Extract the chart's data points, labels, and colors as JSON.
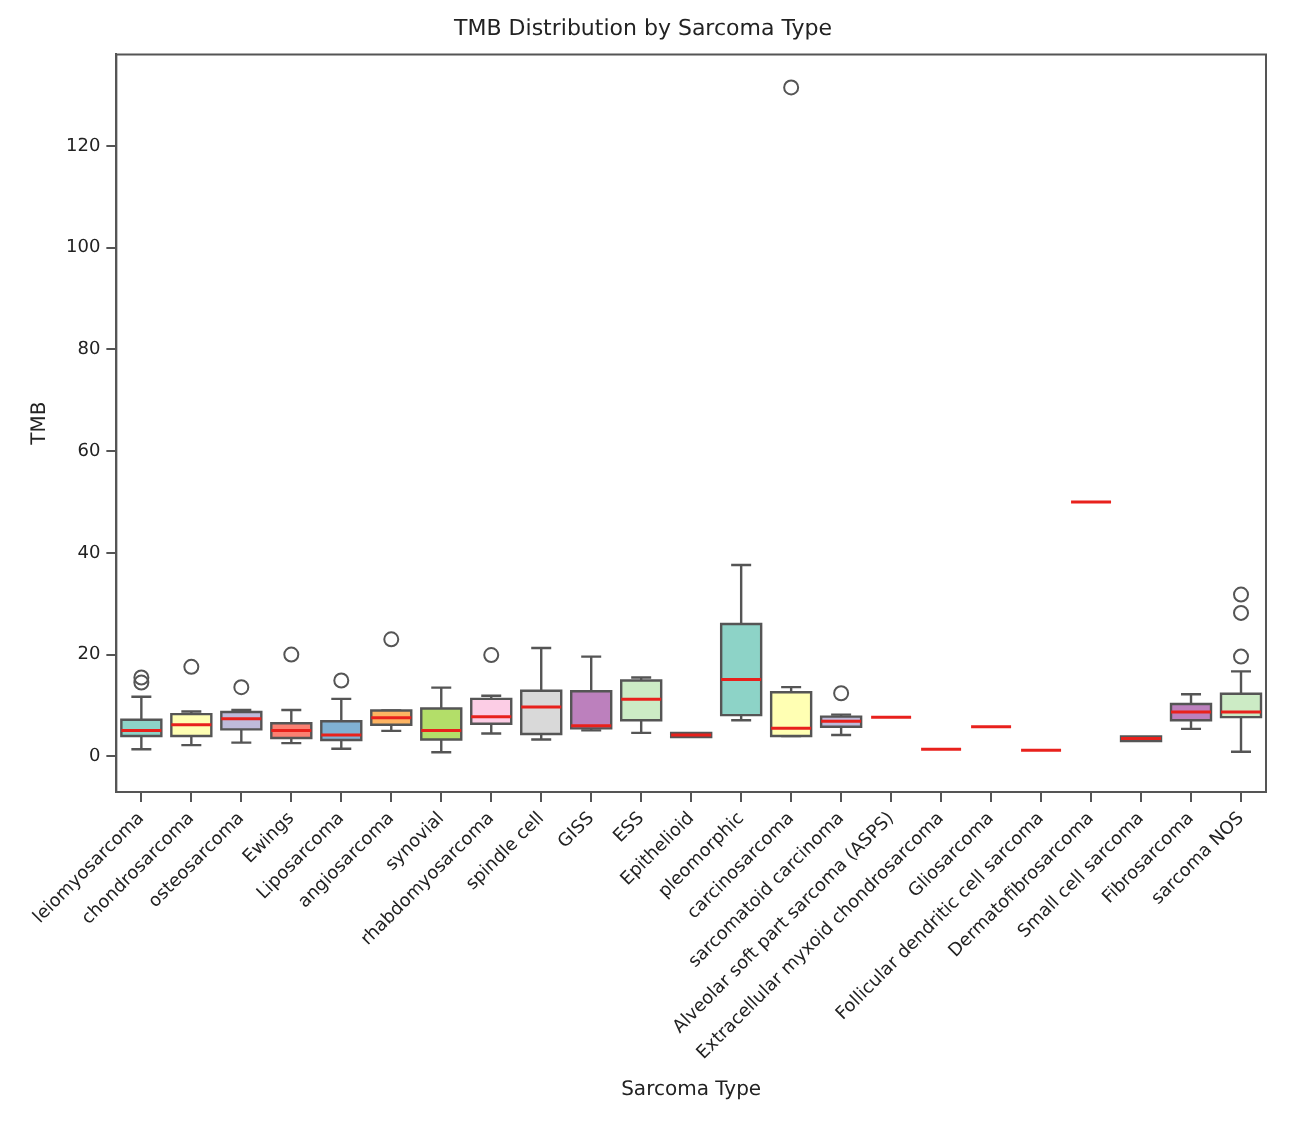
{
  "chart_data": {
    "type": "box",
    "title": "TMB Distribution by Sarcoma Type",
    "xlabel": "Sarcoma Type",
    "ylabel": "TMB",
    "categories": [
      "leiomyosarcoma",
      "chondrosarcoma",
      "osteosarcoma",
      "Ewings",
      "Liposarcoma",
      "angiosarcoma",
      "synovial",
      "rhabdomyosarcoma",
      "spindle cell",
      "GISS",
      "ESS",
      "Epithelioid",
      "pleomorphic",
      "carcinosarcoma",
      "sarcomatoid carcinoma",
      "Alveolar soft part sarcoma (ASPS)",
      "Extracellular myxoid chondrosarcoma",
      "Gliosarcoma",
      "Follicular dendritic cell sarcoma",
      "Dermatofibrosarcoma",
      "Small cell sarcoma",
      "Fibrosarcoma",
      "sarcoma NOS"
    ],
    "colors": [
      "#8dd3c7",
      "#ffffb3",
      "#bebada",
      "#fb8072",
      "#80b1d3",
      "#fdb462",
      "#b3de69",
      "#fccde5",
      "#d9d9d9",
      "#bc80bd",
      "#ccebc5",
      "#ffed6f",
      "#8dd3c7",
      "#ffffb3",
      "#bebada",
      "#e8211c",
      "#e8211c",
      "#e8211c",
      "#e8211c",
      "#e8211c",
      "#d9d9d9",
      "#bc80bd",
      "#ccebc5"
    ],
    "boxes": [
      {
        "low": 1.4,
        "q1": 4.0,
        "median": 5.1,
        "q3": 7.2,
        "high": 11.7,
        "outliers": [
          14.5,
          15.5
        ]
      },
      {
        "low": 2.2,
        "q1": 4.0,
        "median": 6.2,
        "q3": 8.3,
        "high": 8.8,
        "outliers": [
          17.6
        ]
      },
      {
        "low": 2.7,
        "q1": 5.3,
        "median": 7.4,
        "q3": 8.7,
        "high": 9.1,
        "outliers": [
          13.6
        ]
      },
      {
        "low": 2.6,
        "q1": 3.6,
        "median": 5.1,
        "q3": 6.5,
        "high": 9.1,
        "outliers": [
          20
        ]
      },
      {
        "low": 1.5,
        "q1": 3.2,
        "median": 4.2,
        "q3": 6.9,
        "high": 11.3,
        "outliers": [
          14.9
        ]
      },
      {
        "low": 5.0,
        "q1": 6.2,
        "median": 7.6,
        "q3": 9.0,
        "high": 9.0,
        "outliers": [
          23
        ]
      },
      {
        "low": 0.8,
        "q1": 3.3,
        "median": 5.1,
        "q3": 9.4,
        "high": 13.5
      },
      {
        "low": 4.5,
        "q1": 6.4,
        "median": 7.8,
        "q3": 11.3,
        "high": 11.9,
        "outliers": [
          19.9
        ]
      },
      {
        "low": 3.3,
        "q1": 4.4,
        "median": 9.7,
        "q3": 12.9,
        "high": 21.3
      },
      {
        "low": 5.1,
        "q1": 5.5,
        "median": 6.0,
        "q3": 12.8,
        "high": 19.6
      },
      {
        "low": 4.6,
        "q1": 7.1,
        "median": 11.2,
        "q3": 14.9,
        "high": 15.5
      },
      {
        "low": 3.8,
        "q1": 3.8,
        "median": 4.2,
        "q3": 4.6,
        "high": 4.6
      },
      {
        "low": 7.1,
        "q1": 8.1,
        "median": 15.1,
        "q3": 26,
        "high": 37.6
      },
      {
        "low": 4.0,
        "q1": 4.0,
        "median": 5.5,
        "q3": 12.6,
        "high": 13.6,
        "outliers": [
          131.5
        ]
      },
      {
        "low": 4.2,
        "q1": 5.8,
        "median": 6.9,
        "q3": 7.8,
        "high": 8.2,
        "outliers": [
          12.4
        ]
      },
      {
        "low": 7.7,
        "q1": 7.7,
        "median": 7.7,
        "q3": 7.7,
        "high": 7.7
      },
      {
        "low": 1.4,
        "q1": 1.4,
        "median": 1.4,
        "q3": 1.4,
        "high": 1.4
      },
      {
        "low": 5.8,
        "q1": 5.8,
        "median": 5.8,
        "q3": 5.8,
        "high": 5.8
      },
      {
        "low": 1.2,
        "q1": 1.2,
        "median": 1.2,
        "q3": 1.2,
        "high": 1.2
      },
      {
        "low": 50,
        "q1": 50,
        "median": 50,
        "q3": 50,
        "high": 50
      },
      {
        "low": 3.0,
        "q1": 3.0,
        "median": 3.5,
        "q3": 3.9,
        "high": 3.9
      },
      {
        "low": 5.4,
        "q1": 7.1,
        "median": 8.7,
        "q3": 10.3,
        "high": 12.2
      },
      {
        "low": 0.9,
        "q1": 7.7,
        "median": 8.7,
        "q3": 12.3,
        "high": 16.7,
        "outliers": [
          19.6,
          28.2,
          31.8
        ]
      }
    ],
    "ylim": [
      -7,
      138
    ],
    "yticks": [
      0,
      20,
      40,
      60,
      80,
      100,
      120
    ],
    "marker": "circle",
    "grid": false,
    "legend": false
  }
}
